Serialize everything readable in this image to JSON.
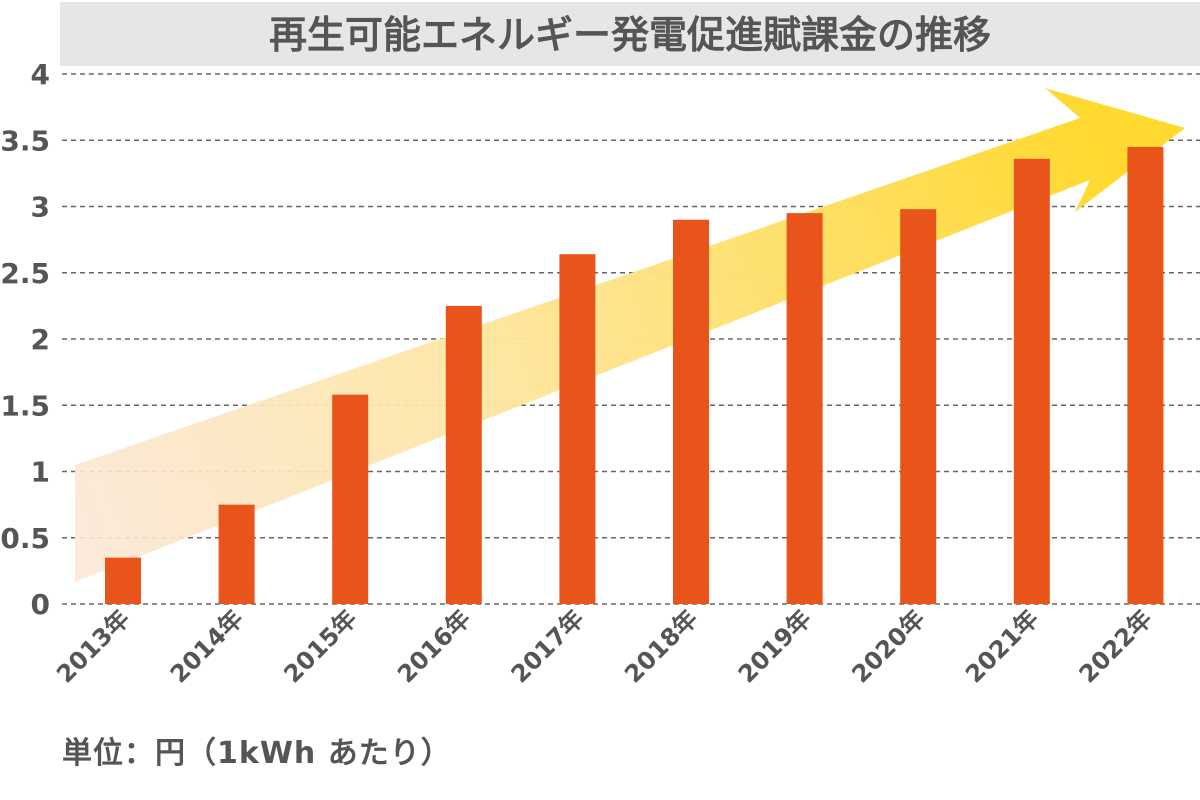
{
  "chart_data": {
    "type": "bar",
    "title": "再生可能エネルギー発電促進賦課金の推移",
    "categories": [
      "2013年",
      "2014年",
      "2015年",
      "2016年",
      "2017年",
      "2018年",
      "2019年",
      "2020年",
      "2021年",
      "2022年"
    ],
    "values": [
      0.35,
      0.75,
      1.58,
      2.25,
      2.64,
      2.9,
      2.95,
      2.98,
      3.36,
      3.45
    ],
    "ylim": [
      0,
      4
    ],
    "yticks": [
      "0",
      "0.5",
      "1",
      "1.5",
      "2",
      "2.5",
      "3",
      "3.5",
      "4"
    ],
    "grid": true,
    "unit_label": "単位：円（1kWh あたり）",
    "colors": {
      "bar": "#e8541a",
      "title_bg": "#e6e6e6",
      "text": "#555555",
      "grid": "#666666",
      "arrow": "#ffd92e"
    }
  }
}
